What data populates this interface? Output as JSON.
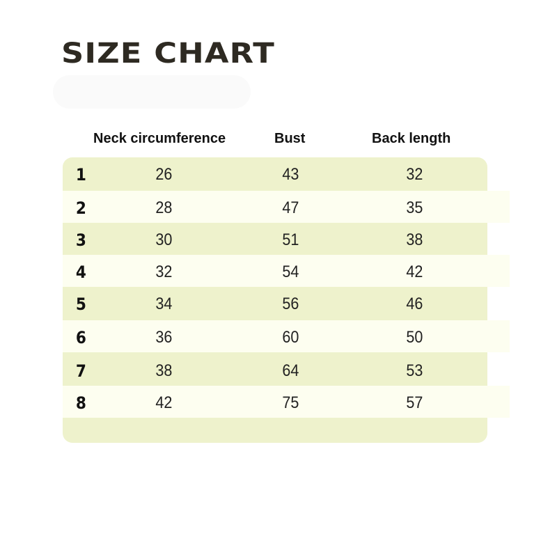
{
  "title": "SIZE CHART",
  "chart_data": {
    "type": "table",
    "columns": [
      "",
      "Neck circumference",
      "Bust",
      "Back length"
    ],
    "rows": [
      {
        "size": "1",
        "neck": "26",
        "bust": "43",
        "back": "32"
      },
      {
        "size": "2",
        "neck": "28",
        "bust": "47",
        "back": "35"
      },
      {
        "size": "3",
        "neck": "30",
        "bust": "51",
        "back": "38"
      },
      {
        "size": "4",
        "neck": "32",
        "bust": "54",
        "back": "42"
      },
      {
        "size": "5",
        "neck": "34",
        "bust": "56",
        "back": "46"
      },
      {
        "size": "6",
        "neck": "36",
        "bust": "60",
        "back": "50"
      },
      {
        "size": "7",
        "neck": "38",
        "bust": "64",
        "back": "53"
      },
      {
        "size": "8",
        "neck": "42",
        "bust": "75",
        "back": "57"
      }
    ]
  },
  "colors": {
    "row_green": "#eef2cc",
    "row_light": "#fdfef0",
    "title": "#2e2a22"
  }
}
